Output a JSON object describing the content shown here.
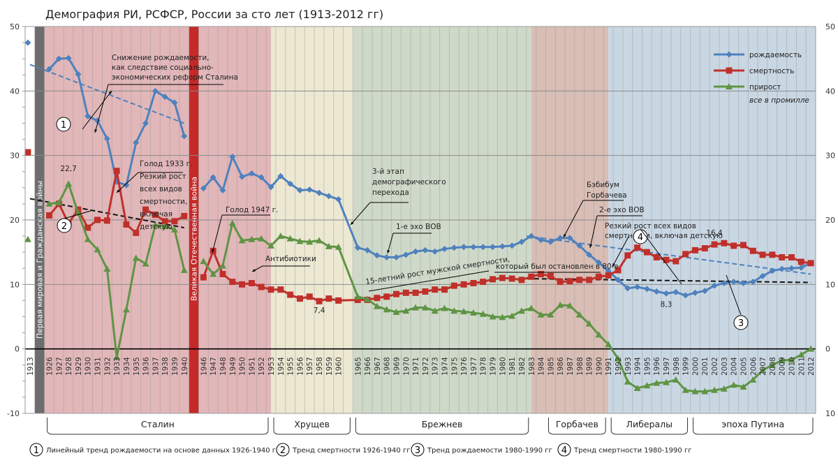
{
  "chart_data": {
    "type": "line",
    "title": "Демография РИ, РСФСР, России за сто лет (1913-2012 гг)",
    "xlabel": "",
    "ylabel": "",
    "ylim": [
      -10,
      50
    ],
    "yticks": [
      -10,
      0,
      10,
      20,
      30,
      40,
      50
    ],
    "right_yticks": [
      "10",
      "0",
      "10",
      "20",
      "30",
      "40",
      "50"
    ],
    "grid": true,
    "legend_position": "top-right",
    "legend_note": "все в промилле",
    "slots": [
      "1913",
      "__ww1",
      "1926",
      "1927",
      "1928",
      "1929",
      "1930",
      "1931",
      "1932",
      "1933",
      "1934",
      "1935",
      "1936",
      "1937",
      "1938",
      "1939",
      "1940",
      "__ww2",
      "1946",
      "1947",
      "1948",
      "1949",
      "1950",
      "1951",
      "1952",
      "1953",
      "1954",
      "1955",
      "1956",
      "1957",
      "1958",
      "1959",
      "1960",
      "__gap",
      "1965",
      "1966",
      "1967",
      "1968",
      "1969",
      "1970",
      "1971",
      "1972",
      "1973",
      "1974",
      "1975",
      "1976",
      "1977",
      "1978",
      "1979",
      "1980",
      "1981",
      "1982",
      "1983",
      "1984",
      "1985",
      "1986",
      "1987",
      "1988",
      "1989",
      "1990",
      "1991",
      "1992",
      "1993",
      "1994",
      "1995",
      "1996",
      "1997",
      "1998",
      "1999",
      "2000",
      "2001",
      "2002",
      "2003",
      "2004",
      "2005",
      "2006",
      "2007",
      "2008",
      "2009",
      "2010",
      "2011",
      "2012"
    ],
    "series": [
      {
        "name": "рождаемость",
        "color": "#4f81bd",
        "marker": "diamond",
        "segments": [
          {
            "years": [
              "1913"
            ],
            "values": [
              47.5
            ],
            "standalone": true
          },
          {
            "years": [
              "1926",
              "1927",
              "1928",
              "1929",
              "1930",
              "1931",
              "1932",
              "1933",
              "1934",
              "1935",
              "1936",
              "1937",
              "1938",
              "1939",
              "1940"
            ],
            "values": [
              43.4,
              45.0,
              45.1,
              42.6,
              36.1,
              35.4,
              32.6,
              25.9,
              25.4,
              32.0,
              35.0,
              40.0,
              39.1,
              38.2,
              33.0
            ]
          },
          {
            "years": [
              "1946",
              "1947",
              "1948",
              "1949",
              "1950",
              "1951",
              "1952",
              "1953",
              "1954",
              "1955",
              "1956",
              "1957",
              "1958",
              "1959",
              "1960",
              "1965",
              "1966",
              "1967",
              "1968",
              "1969",
              "1970",
              "1971",
              "1972",
              "1973",
              "1974",
              "1975",
              "1976",
              "1977",
              "1978",
              "1979",
              "1980",
              "1981",
              "1982",
              "1983",
              "1984",
              "1985",
              "1986",
              "1987",
              "1988",
              "1989",
              "1990",
              "1991",
              "1992",
              "1993",
              "1994",
              "1995",
              "1996",
              "1997",
              "1998",
              "1999",
              "2000",
              "2001",
              "2002",
              "2003",
              "2004",
              "2005",
              "2006",
              "2007",
              "2008",
              "2009",
              "2010",
              "2011",
              "2012"
            ],
            "values": [
              24.9,
              26.6,
              24.6,
              29.8,
              26.7,
              27.2,
              26.6,
              25.1,
              26.8,
              25.6,
              24.6,
              24.7,
              24.2,
              23.7,
              23.2,
              15.7,
              15.3,
              14.5,
              14.2,
              14.2,
              14.6,
              15.1,
              15.3,
              15.1,
              15.5,
              15.7,
              15.8,
              15.8,
              15.8,
              15.8,
              15.9,
              16.0,
              16.6,
              17.5,
              16.9,
              16.6,
              17.2,
              17.2,
              16.0,
              14.6,
              13.4,
              12.1,
              10.7,
              9.4,
              9.6,
              9.3,
              8.9,
              8.6,
              8.8,
              8.3,
              8.7,
              9.0,
              9.8,
              10.2,
              10.4,
              10.2,
              10.4,
              11.3,
              12.1,
              12.4,
              12.5,
              12.6,
              13.3
            ]
          }
        ]
      },
      {
        "name": "смертность",
        "color": "#c0302b",
        "marker": "square",
        "segments": [
          {
            "years": [
              "1913"
            ],
            "values": [
              30.5
            ],
            "standalone": true
          },
          {
            "years": [
              "1926",
              "1927",
              "1928",
              "1929",
              "1930",
              "1931",
              "1932",
              "1933",
              "1934",
              "1935",
              "1936",
              "1937",
              "1938",
              "1939",
              "1940"
            ],
            "values": [
              20.7,
              22.5,
              19.5,
              21.6,
              18.8,
              20.0,
              19.9,
              27.6,
              19.3,
              18.0,
              21.6,
              20.8,
              19.8,
              19.8,
              20.6
            ]
          },
          {
            "years": [
              "1946",
              "1947",
              "1948",
              "1949",
              "1950",
              "1951",
              "1952",
              "1953",
              "1954",
              "1955",
              "1956",
              "1957",
              "1958",
              "1959",
              "1960",
              "1965",
              "1966",
              "1967",
              "1968",
              "1969",
              "1970",
              "1971",
              "1972",
              "1973",
              "1974",
              "1975",
              "1976",
              "1977",
              "1978",
              "1979",
              "1980",
              "1981",
              "1982",
              "1983",
              "1984",
              "1985",
              "1986",
              "1987",
              "1988",
              "1989",
              "1990",
              "1991",
              "1992",
              "1993",
              "1994",
              "1995",
              "1996",
              "1997",
              "1998",
              "1999",
              "2000",
              "2001",
              "2002",
              "2003",
              "2004",
              "2005",
              "2006",
              "2007",
              "2008",
              "2009",
              "2010",
              "2011",
              "2012"
            ],
            "values": [
              11.1,
              15.2,
              11.6,
              10.4,
              10.0,
              10.2,
              9.6,
              9.2,
              9.2,
              8.4,
              7.8,
              8.1,
              7.4,
              7.8,
              7.5,
              7.6,
              7.6,
              7.9,
              8.1,
              8.5,
              8.7,
              8.7,
              8.9,
              9.2,
              9.2,
              9.8,
              10.0,
              10.2,
              10.4,
              10.8,
              11.0,
              10.9,
              10.7,
              11.2,
              11.6,
              11.3,
              10.4,
              10.5,
              10.7,
              10.7,
              11.2,
              11.4,
              12.2,
              14.5,
              15.7,
              15.0,
              14.2,
              13.8,
              13.6,
              14.7,
              15.3,
              15.6,
              16.2,
              16.4,
              16.0,
              16.1,
              15.2,
              14.6,
              14.6,
              14.2,
              14.2,
              13.5,
              13.3
            ]
          }
        ]
      },
      {
        "name": "прирост",
        "color": "#5f9444",
        "marker": "triangle",
        "segments": [
          {
            "years": [
              "1913"
            ],
            "values": [
              17.0
            ],
            "standalone": true
          },
          {
            "years": [
              "1926",
              "1927",
              "1928",
              "1929",
              "1930",
              "1931",
              "1932",
              "1933",
              "1934",
              "1935",
              "1936",
              "1937",
              "1938",
              "1939",
              "1940"
            ],
            "values": [
              22.5,
              22.7,
              25.6,
              21.1,
              17.0,
              15.4,
              12.4,
              -1.3,
              6.1,
              14.1,
              13.2,
              19.2,
              19.0,
              18.5,
              12.2
            ]
          },
          {
            "years": [
              "1946",
              "1947",
              "1948",
              "1949",
              "1950",
              "1951",
              "1952",
              "1953",
              "1954",
              "1955",
              "1956",
              "1957",
              "1958",
              "1959",
              "1960",
              "1965",
              "1966",
              "1967",
              "1968",
              "1969",
              "1970",
              "1971",
              "1972",
              "1973",
              "1974",
              "1975",
              "1976",
              "1977",
              "1978",
              "1979",
              "1980",
              "1981",
              "1982",
              "1983",
              "1984",
              "1985",
              "1986",
              "1987",
              "1988",
              "1989",
              "1990",
              "1991",
              "1992",
              "1993",
              "1994",
              "1995",
              "1996",
              "1997",
              "1998",
              "1999",
              "2000",
              "2001",
              "2002",
              "2003",
              "2004",
              "2005",
              "2006",
              "2007",
              "2008",
              "2009",
              "2010",
              "2011",
              "2012"
            ],
            "values": [
              13.6,
              11.6,
              12.9,
              19.5,
              16.8,
              17.0,
              17.1,
              16.0,
              17.5,
              17.1,
              16.7,
              16.6,
              16.8,
              15.9,
              15.8,
              8.1,
              7.7,
              6.6,
              6.1,
              5.7,
              5.9,
              6.4,
              6.4,
              5.9,
              6.3,
              5.9,
              5.8,
              5.6,
              5.4,
              5.0,
              4.9,
              5.1,
              5.9,
              6.3,
              5.3,
              5.3,
              6.8,
              6.7,
              5.3,
              3.9,
              2.2,
              0.7,
              -1.5,
              -5.1,
              -6.1,
              -5.7,
              -5.3,
              -5.2,
              -4.8,
              -6.4,
              -6.6,
              -6.6,
              -6.4,
              -6.2,
              -5.6,
              -5.9,
              -4.8,
              -3.3,
              -2.5,
              -1.8,
              -1.7,
              -0.9,
              0.0
            ]
          }
        ]
      }
    ],
    "trend_lines": [
      {
        "id": "1",
        "label": "Линейный тренд рождаемости на основе данных 1926-1940 гг",
        "color": "#4f81bd",
        "from": {
          "slot": 0,
          "value": 44.1
        },
        "to": {
          "slot": 16,
          "value": 35.0
        }
      },
      {
        "id": "2",
        "label": "Тренд смертности 1926-1940 гг",
        "color": "#111111",
        "from": {
          "slot": 0,
          "value": 23.3
        },
        "to": {
          "slot": 16,
          "value": 18.8
        }
      },
      {
        "id": "3",
        "label": "Тренд рождаемости 1980-1990 гг",
        "color": "#4f81bd",
        "from": {
          "slot": 51.5,
          "value": 17.5
        },
        "to": {
          "slot": 81,
          "value": 11.6
        }
      },
      {
        "id": "4",
        "label": "Тренд смертности 1980-1990 гг",
        "color": "#111111",
        "from": {
          "slot": 51.5,
          "value": 10.9
        },
        "to": {
          "slot": 81,
          "value": 10.3
        }
      }
    ],
    "value_labels": [
      {
        "text": "22,7",
        "slot": 4,
        "value": 27.6
      },
      {
        "text": "7,4",
        "slot": 30,
        "value": 5.6
      },
      {
        "text": "16,4",
        "slot": 71,
        "value": 17.6
      },
      {
        "text": "8,3",
        "slot": 66,
        "value": 6.5
      }
    ],
    "bands": [
      {
        "name": "ww1",
        "from": 1,
        "to": 2,
        "color": "#6d6d6d",
        "label": "Первая мировая и Гражданская войны"
      },
      {
        "name": "stalin-1",
        "from": 2,
        "to": 17,
        "color": "#e2b7b9"
      },
      {
        "name": "ww2",
        "from": 17,
        "to": 18,
        "color": "#c42a29",
        "label": "Великая Отечественная война"
      },
      {
        "name": "stalin-2",
        "from": 18,
        "to": 25.5,
        "color": "#e2b7b9"
      },
      {
        "name": "khrushchev",
        "from": 25.5,
        "to": 34,
        "color": "#ece8d2"
      },
      {
        "name": "brezhnev",
        "from": 34,
        "to": 52.5,
        "color": "#cfd9c9"
      },
      {
        "name": "gorbachev",
        "from": 52.5,
        "to": 60.5,
        "color": "#d9beb5"
      },
      {
        "name": "liberals-putin",
        "from": 60.5,
        "to": 82,
        "color": "#c9d7e3"
      }
    ],
    "eras": [
      {
        "label": "Сталин",
        "from": 2,
        "to": 25.5
      },
      {
        "label": "Хрущев",
        "from": 25.5,
        "to": 34
      },
      {
        "label": "Брежнев",
        "from": 34,
        "to": 52.5
      },
      {
        "label": "Горбачев",
        "from": 54,
        "to": 60.5
      },
      {
        "label": "Либералы",
        "from": 60.5,
        "to": 69
      },
      {
        "label": "эпоха Путина",
        "from": 69,
        "to": 82
      }
    ],
    "annotations": [
      {
        "id": "reform",
        "lines": [
          "Снижение рождаемости,",
          "как следствие социально-",
          "экономических реформ Сталина"
        ]
      },
      {
        "id": "famine33",
        "lines": [
          "Голод 1933 г.",
          "Резкий рост",
          "всех видов",
          "смертности,",
          "включая",
          "детскую"
        ]
      },
      {
        "id": "famine47",
        "lines": [
          "Голод 1947 г."
        ]
      },
      {
        "id": "antibiotics",
        "lines": [
          "Антибиотики"
        ]
      },
      {
        "id": "stage3",
        "lines": [
          "3-й этап",
          "демографического",
          "перехода"
        ]
      },
      {
        "id": "echo1",
        "lines": [
          "1-е эхо ВОВ"
        ]
      },
      {
        "id": "male-mort-1",
        "lines": [
          "15-летний рост мужской смертности,"
        ]
      },
      {
        "id": "male-mort-2",
        "lines": [
          "который был остановлен в 80-е"
        ]
      },
      {
        "id": "babyboom",
        "lines": [
          "Бэбибум",
          "Горбачева"
        ]
      },
      {
        "id": "echo2",
        "lines": [
          "2-е эхо ВОВ"
        ]
      },
      {
        "id": "mort90s",
        "lines": [
          "Резкий рост всех видов",
          "смертности, включая детскую"
        ]
      }
    ]
  }
}
